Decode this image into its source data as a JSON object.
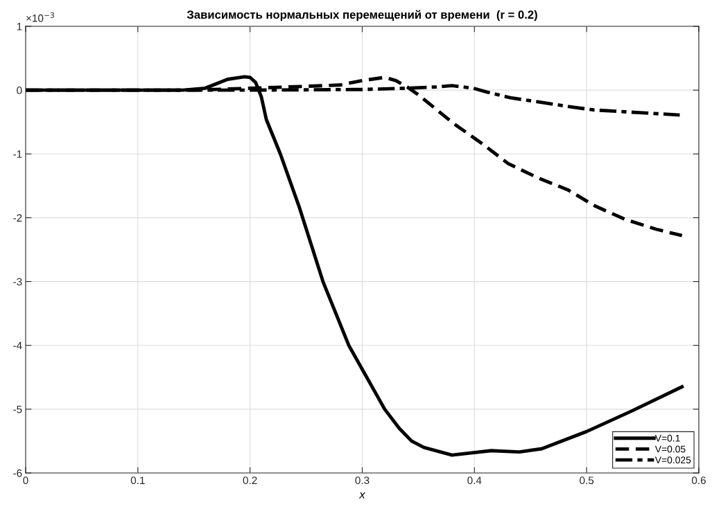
{
  "chart_data": {
    "type": "line",
    "title": "Зависимость нормальных перемещений от времени  (r = 0.2)",
    "xlabel": "x",
    "annotations": [
      "×10$^{−3}$"
    ],
    "xlim": [
      0,
      0.6
    ],
    "xticks": [
      0,
      0.1,
      0.2,
      0.3,
      0.4,
      0.5,
      0.6
    ],
    "ylim": [
      -6,
      1
    ],
    "yticks": [
      -6,
      -5,
      -4,
      -3,
      -2,
      -1,
      0,
      1
    ],
    "grid": true,
    "legend": "bottom right",
    "series": [
      {
        "name": "V=0.1",
        "color": "#000000",
        "line_style": "solid",
        "x": [
          0,
          0.1,
          0.14,
          0.16,
          0.18,
          0.195,
          0.2,
          0.205,
          0.21,
          0.2145,
          0.227,
          0.244,
          0.265,
          0.288,
          0.304,
          0.32,
          0.333,
          0.344,
          0.355,
          0.38,
          0.415,
          0.44,
          0.46,
          0.5,
          0.54,
          0.585
        ],
        "values": [
          0,
          0,
          0,
          0.03,
          0.17,
          0.21,
          0.2,
          0.12,
          -0.1,
          -0.46,
          -1.0,
          -1.84,
          -3.0,
          -4.0,
          -4.5,
          -5.0,
          -5.3,
          -5.5,
          -5.6,
          -5.72,
          -5.65,
          -5.67,
          -5.62,
          -5.35,
          -5.03,
          -4.65
        ]
      },
      {
        "name": "V=0.05",
        "color": "#000000",
        "line_style": "dashed",
        "x": [
          0,
          0.15,
          0.2,
          0.25,
          0.28,
          0.3,
          0.32,
          0.33,
          0.34,
          0.349,
          0.382,
          0.407,
          0.43,
          0.456,
          0.483,
          0.508,
          0.535,
          0.562,
          0.585
        ],
        "values": [
          0,
          0,
          0.03,
          0.06,
          0.08,
          0.15,
          0.2,
          0.15,
          0.05,
          -0.06,
          -0.53,
          -0.84,
          -1.15,
          -1.37,
          -1.56,
          -1.82,
          -2.03,
          -2.18,
          -2.28
        ]
      },
      {
        "name": "V=0.025",
        "color": "#000000",
        "line_style": "dashdot",
        "x": [
          0,
          0.2,
          0.3,
          0.34,
          0.366,
          0.38,
          0.399,
          0.411,
          0.432,
          0.459,
          0.485,
          0.506,
          0.535,
          0.583
        ],
        "values": [
          0,
          0,
          0.01,
          0.03,
          0.05,
          0.07,
          0.03,
          -0.03,
          -0.12,
          -0.19,
          -0.26,
          -0.31,
          -0.34,
          -0.39
        ]
      }
    ]
  }
}
